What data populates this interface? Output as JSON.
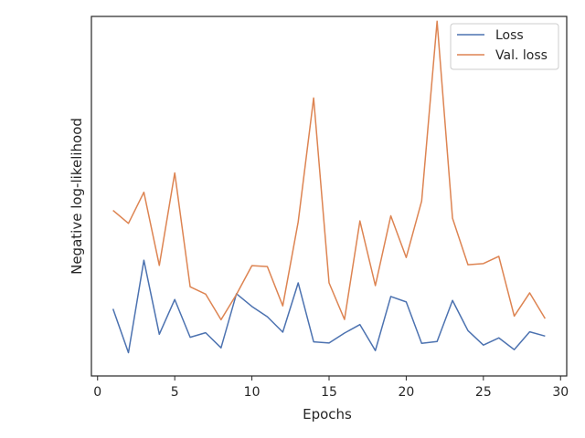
{
  "chart_data": {
    "type": "line",
    "title": "",
    "xlabel": "Epochs",
    "ylabel": "Negative log-likelihood",
    "x": [
      1,
      2,
      3,
      4,
      5,
      6,
      7,
      8,
      9,
      10,
      11,
      12,
      13,
      14,
      15,
      16,
      17,
      18,
      19,
      20,
      21,
      22,
      23,
      24,
      25,
      26,
      27,
      28,
      29
    ],
    "xticks": [
      0,
      5,
      10,
      15,
      20,
      25,
      30
    ],
    "xtick_labels": [
      "0",
      "5",
      "10",
      "15",
      "20",
      "25",
      "30"
    ],
    "xlim": [
      -0.4,
      30.4
    ],
    "y_axis_labeled": false,
    "series": [
      {
        "name": "Loss",
        "color": "#4c72b0",
        "values": [
          0.232,
          0.087,
          0.393,
          0.148,
          0.263,
          0.138,
          0.153,
          0.103,
          0.282,
          0.24,
          0.206,
          0.155,
          0.318,
          0.123,
          0.119,
          0.152,
          0.18,
          0.094,
          0.273,
          0.255,
          0.118,
          0.124,
          0.26,
          0.16,
          0.112,
          0.136,
          0.097,
          0.156,
          0.142
        ]
      },
      {
        "name": "Val. loss",
        "color": "#dd8452",
        "values": [
          0.558,
          0.515,
          0.618,
          0.376,
          0.682,
          0.305,
          0.281,
          0.196,
          0.28,
          0.375,
          0.372,
          0.242,
          0.52,
          0.93,
          0.318,
          0.197,
          0.523,
          0.309,
          0.54,
          0.402,
          0.589,
          1.184,
          0.532,
          0.378,
          0.382,
          0.406,
          0.208,
          0.285,
          0.2
        ]
      }
    ],
    "ylim": [
      0.01,
      1.2
    ],
    "grid": false,
    "legend": {
      "position": "top-right"
    }
  }
}
